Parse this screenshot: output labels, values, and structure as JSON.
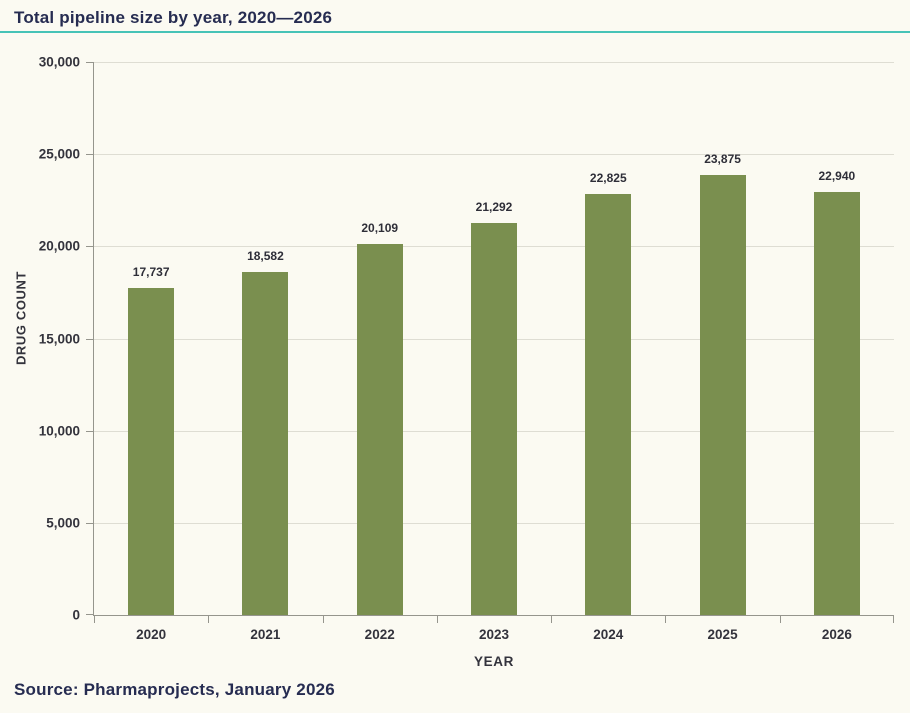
{
  "header": {
    "title": "Total pipeline size by year, 2020—2026"
  },
  "footer": {
    "source": "Source: Pharmaprojects, January 2026"
  },
  "chart_data": {
    "type": "bar",
    "title": "Total pipeline size by year, 2020—2026",
    "categories": [
      "2020",
      "2021",
      "2022",
      "2023",
      "2024",
      "2025",
      "2026"
    ],
    "values": [
      17737,
      18582,
      20109,
      21292,
      22825,
      23875,
      22940
    ],
    "value_labels": [
      "17,737",
      "18,582",
      "20,109",
      "21,292",
      "22,825",
      "23,875",
      "22,940"
    ],
    "xlabel": "YEAR",
    "ylabel": "DRUG COUNT",
    "ylim": [
      0,
      30000
    ],
    "ytick_step": 5000,
    "ytick_labels": [
      "0",
      "5,000",
      "10,000",
      "15,000",
      "20,000",
      "25,000",
      "30,000"
    ],
    "grid": "horizontal",
    "legend": "none",
    "colors": {
      "bar": "#7A8F4F",
      "accent": "#46C3B7",
      "navy": "#262C51",
      "gridline": "#DEDDD3",
      "axis": "#95958D",
      "background": "#FBFAF2"
    }
  }
}
